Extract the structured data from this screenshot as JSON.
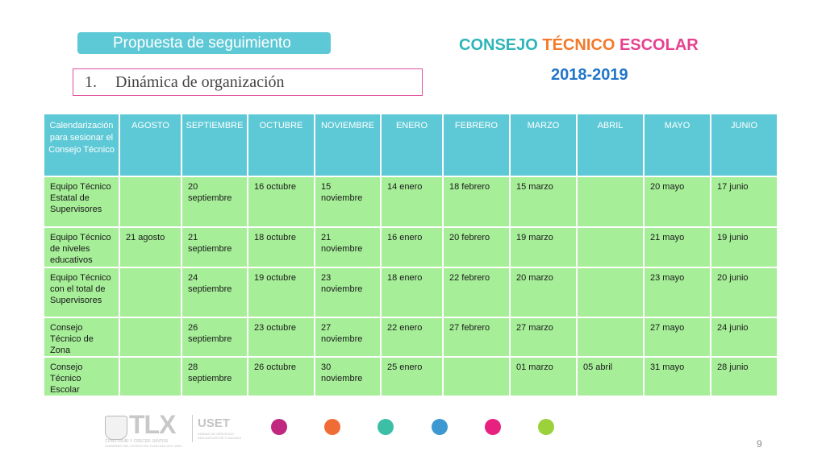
{
  "slide": {
    "subtitle": "Propuesta de seguimiento",
    "item_number": "1.",
    "item_text": "Dinámica de organización",
    "heading_words": [
      {
        "text": "CONSEJO",
        "color": "#2fb5b9"
      },
      {
        "text": "TÉCNICO",
        "color": "#f37a2a"
      },
      {
        "text": "ESCOLAR",
        "color": "#e6418f"
      }
    ],
    "year": "2018-2019",
    "page_number": "9"
  },
  "table": {
    "headers": [
      "Calendarización para sesionar el Consejo Técnico",
      "AGOSTO",
      "SEPTIEMBRE",
      "OCTUBRE",
      "NOVIEMBRE",
      "ENERO",
      "FEBRERO",
      "MARZO",
      "ABRIL",
      "MAYO",
      "JUNIO"
    ],
    "rows": [
      [
        "Equipo Técnico Estatal de Supervisores",
        "",
        "20 septiembre",
        "16 octubre",
        "15 noviembre",
        "14 enero",
        "18 febrero",
        "15 marzo",
        "",
        "20 mayo",
        "17 junio"
      ],
      [
        "Equipo Técnico de niveles educativos",
        "21 agosto",
        "21 septiembre",
        "18 octubre",
        "21 noviembre",
        "16 enero",
        "20 febrero",
        "19 marzo",
        "",
        "21 mayo",
        "19 junio"
      ],
      [
        "Equipo Técnico con el total de Supervisores",
        "",
        "24 septiembre",
        "19 octubre",
        "23 noviembre",
        "18 enero",
        "22 febrero",
        "20 marzo",
        "",
        "23 mayo",
        "20 junio"
      ],
      [
        "Consejo Técnico de Zona",
        "",
        "26 septiembre",
        "23 octubre",
        "27 noviembre",
        "22 enero",
        "27 febrero",
        "27 marzo",
        "",
        "27 mayo",
        "24 junio"
      ],
      [
        "Consejo Técnico Escolar",
        "",
        "28 septiembre",
        "26 octubre",
        "30 noviembre",
        "25 enero",
        "",
        "01 marzo",
        "05 abril",
        "31 mayo",
        "28 junio"
      ]
    ]
  },
  "footer": {
    "logo_tlx": "TLX",
    "logo_tlx_tagline": "CONSTRUIR Y CRECER JUNTOS",
    "logo_tlx_sub": "GOBIERNO DEL ESTADO DE TLAXCALA 2017-2021",
    "logo_uset": "USET",
    "logo_uset_sub1": "UNIDAD DE SERVICIOS",
    "logo_uset_sub2": "EDUCATIVOS DE TLAXCALA",
    "dots": [
      {
        "name": "magenta-dot",
        "color": "#c0277e"
      },
      {
        "name": "orange-dot",
        "color": "#f06c36"
      },
      {
        "name": "teal-dot",
        "color": "#3dbfa6"
      },
      {
        "name": "blue-dot",
        "color": "#3d97d1"
      },
      {
        "name": "pink-dot",
        "color": "#e8207f"
      },
      {
        "name": "green-dot",
        "color": "#9bd23c"
      }
    ]
  }
}
